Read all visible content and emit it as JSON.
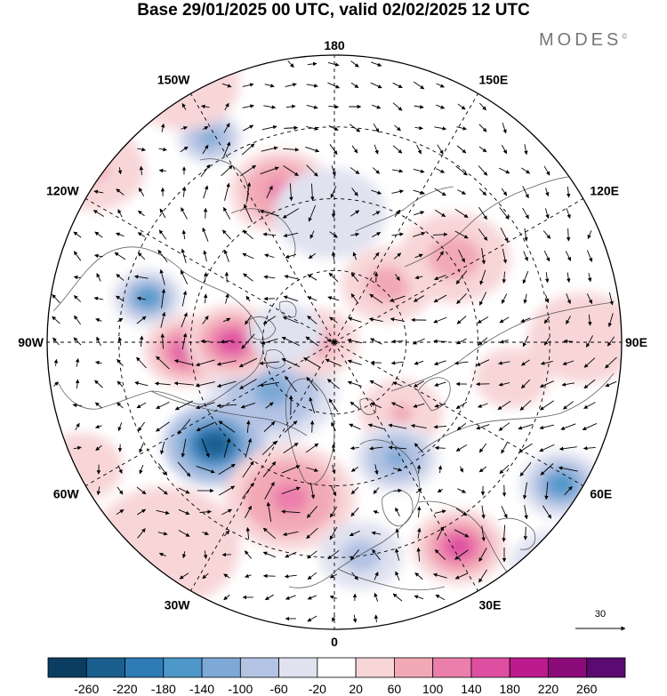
{
  "title": "Base 29/01/2025 00 UTC, valid 02/02/2025 12 UTC",
  "logo": {
    "text": "MODES",
    "mark": "©"
  },
  "longitude_labels": [
    {
      "text": "180",
      "lon": 180
    },
    {
      "text": "150E",
      "lon": 150
    },
    {
      "text": "120E",
      "lon": 120
    },
    {
      "text": "90E",
      "lon": 90
    },
    {
      "text": "60E",
      "lon": 60
    },
    {
      "text": "30E",
      "lon": 30
    },
    {
      "text": "0",
      "lon": 0
    },
    {
      "text": "30W",
      "lon": -30
    },
    {
      "text": "60W",
      "lon": -60
    },
    {
      "text": "90W",
      "lon": -90
    },
    {
      "text": "120W",
      "lon": -120
    },
    {
      "text": "150W",
      "lon": -150
    }
  ],
  "vector_reference": {
    "label": "30"
  },
  "colorbar": {
    "ticks": [
      "-260",
      "-220",
      "-180",
      "-140",
      "-100",
      "-60",
      "-20",
      "20",
      "60",
      "100",
      "140",
      "180",
      "220",
      "260"
    ],
    "colors": [
      "#0b3d61",
      "#1a5f8e",
      "#2d7cb6",
      "#4d97c9",
      "#7ea9d6",
      "#b3c3e3",
      "#e0e2f0",
      "#ffffff",
      "#f8d6d8",
      "#f2a9b6",
      "#ec7eab",
      "#de4fa2",
      "#bb1b8c",
      "#8a0a7a",
      "#5a0a70"
    ]
  },
  "anomaly_centers": [
    {
      "lat_offset": [
        -73,
        -160
      ],
      "value": 150,
      "radius": 40
    },
    {
      "lat_offset": [
        -210,
        -50
      ],
      "value": -150,
      "radius": 38
    },
    {
      "lat_offset": [
        -70,
        55
      ],
      "value": -120,
      "radius": 70
    },
    {
      "lat_offset": [
        -135,
        115
      ],
      "value": -230,
      "radius": 55
    },
    {
      "lat_offset": [
        -165,
        10
      ],
      "value": 150,
      "radius": 48
    },
    {
      "lat_offset": [
        -140,
        -230
      ],
      "value": -110,
      "radius": 35
    },
    {
      "lat_offset": [
        -60,
        -170
      ],
      "value": 110,
      "radius": 55
    },
    {
      "lat_offset": [
        -20,
        0
      ],
      "value": 80,
      "radius": 45
    },
    {
      "lat_offset": [
        -5,
        -145
      ],
      "value": -40,
      "radius": 60
    },
    {
      "lat_offset": [
        60,
        -65
      ],
      "value": 90,
      "radius": 50
    },
    {
      "lat_offset": [
        75,
        80
      ],
      "value": 70,
      "radius": 45
    },
    {
      "lat_offset": [
        255,
        160
      ],
      "value": -170,
      "radius": 45
    },
    {
      "lat_offset": [
        135,
        -95
      ],
      "value": 90,
      "radius": 60
    },
    {
      "lat_offset": [
        70,
        130
      ],
      "value": -120,
      "radius": 45
    },
    {
      "lat_offset": [
        -115,
        0
      ],
      "value": 150,
      "radius": 50
    },
    {
      "lat_offset": [
        -50,
        175
      ],
      "value": 110,
      "radius": 70
    },
    {
      "lat_offset": [
        -55,
        -10
      ],
      "value": -60,
      "radius": 40
    },
    {
      "lat_offset": [
        30,
        240
      ],
      "value": -90,
      "radius": 45
    },
    {
      "lat_offset": [
        140,
        230
      ],
      "value": 150,
      "radius": 50
    },
    {
      "lat_offset": [
        245,
        250
      ],
      "value": -20,
      "radius": 45
    },
    {
      "lat_offset": [
        -285,
        140
      ],
      "value": 40,
      "radius": 45
    },
    {
      "lat_offset": [
        -170,
        -290
      ],
      "value": 50,
      "radius": 60
    },
    {
      "lat_offset": [
        -190,
        230
      ],
      "value": 30,
      "radius": 80
    },
    {
      "lat_offset": [
        -270,
        -195
      ],
      "value": 60,
      "radius": 55
    },
    {
      "lat_offset": [
        280,
        -5
      ],
      "value": 40,
      "radius": 60
    },
    {
      "lat_offset": [
        200,
        40
      ],
      "value": 40,
      "radius": 40
    }
  ]
}
